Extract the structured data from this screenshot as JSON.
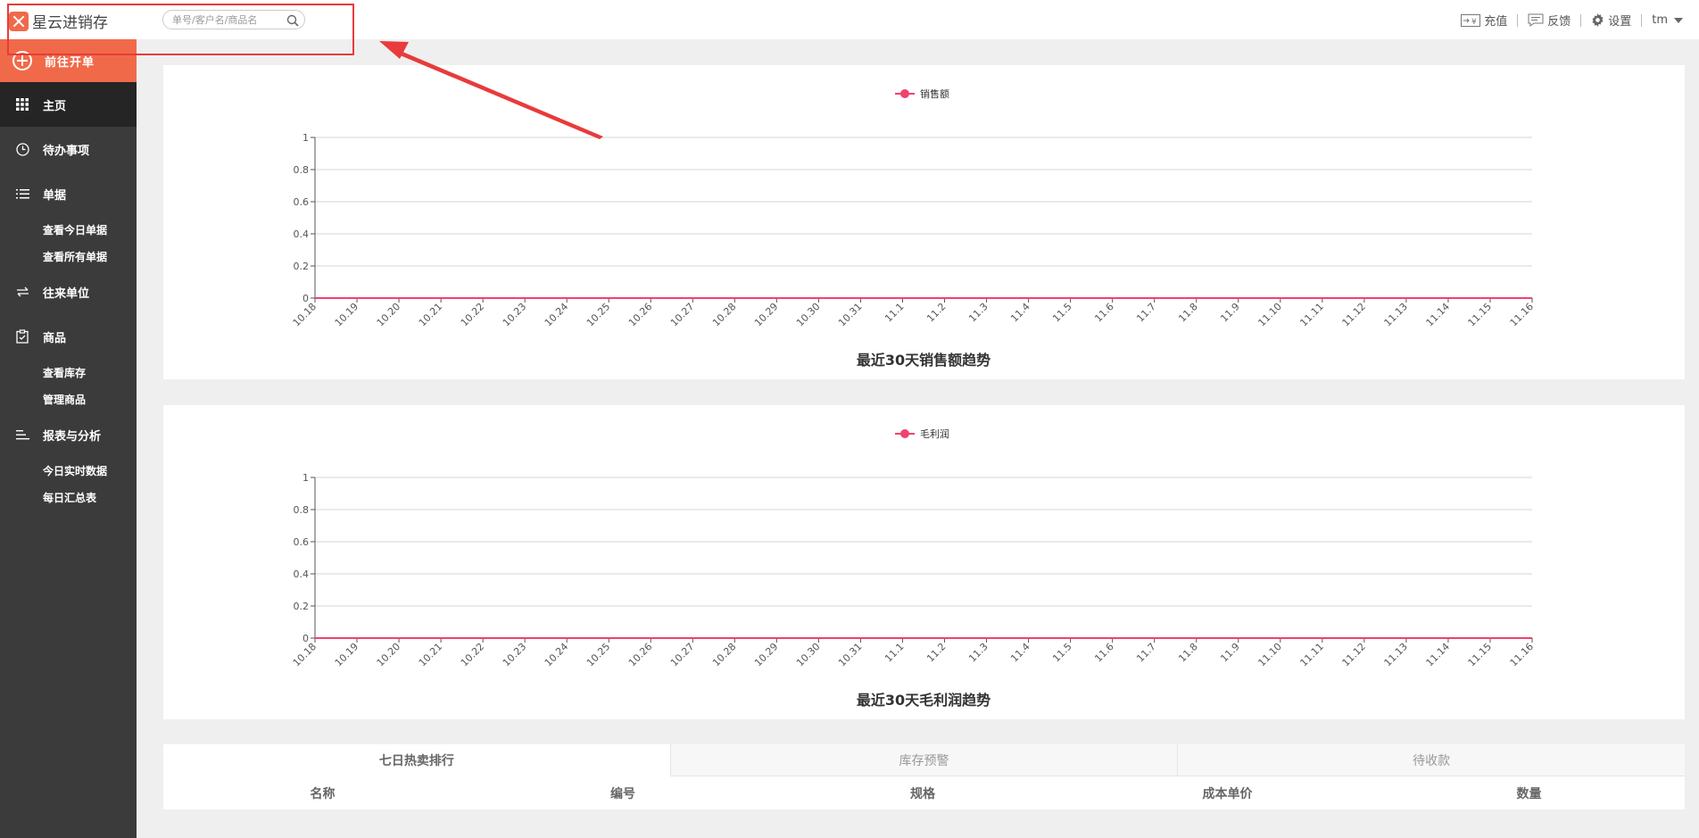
{
  "app": {
    "title": "星云进销存",
    "search_placeholder": "单号/客户名/商品名"
  },
  "topbar": {
    "recharge": "充值",
    "feedback": "反馈",
    "settings": "设置",
    "user": "tm"
  },
  "sidebar": {
    "new_order": "前往开单",
    "home": "主页",
    "todo": "待办事项",
    "documents": "单据",
    "documents_today": "查看今日单据",
    "documents_all": "查看所有单据",
    "partners": "往来单位",
    "goods": "商品",
    "goods_stock": "查看库存",
    "goods_manage": "管理商品",
    "reports": "报表与分析",
    "reports_realtime": "今日实时数据",
    "reports_daily": "每日汇总表"
  },
  "colors": {
    "accent": "#f06a4a",
    "series": "#f0426e",
    "sidebar": "#3b3b3b"
  },
  "chart_data": [
    {
      "type": "line",
      "title": "最近30天销售额趋势",
      "legend": "销售额",
      "categories": [
        "10.18",
        "10.19",
        "10.20",
        "10.21",
        "10.22",
        "10.23",
        "10.24",
        "10.25",
        "10.26",
        "10.27",
        "10.28",
        "10.29",
        "10.30",
        "10.31",
        "11.1",
        "11.2",
        "11.3",
        "11.4",
        "11.5",
        "11.6",
        "11.7",
        "11.8",
        "11.9",
        "11.10",
        "11.11",
        "11.12",
        "11.13",
        "11.14",
        "11.15",
        "11.16"
      ],
      "values": [
        0,
        0,
        0,
        0,
        0,
        0,
        0,
        0,
        0,
        0,
        0,
        0,
        0,
        0,
        0,
        0,
        0,
        0,
        0,
        0,
        0,
        0,
        0,
        0,
        0,
        0,
        0,
        0,
        0,
        0
      ],
      "yticks": [
        "0",
        "0.2",
        "0.4",
        "0.6",
        "0.8",
        "1"
      ],
      "ylim": [
        0,
        1
      ]
    },
    {
      "type": "line",
      "title": "最近30天毛利润趋势",
      "legend": "毛利润",
      "categories": [
        "10.18",
        "10.19",
        "10.20",
        "10.21",
        "10.22",
        "10.23",
        "10.24",
        "10.25",
        "10.26",
        "10.27",
        "10.28",
        "10.29",
        "10.30",
        "10.31",
        "11.1",
        "11.2",
        "11.3",
        "11.4",
        "11.5",
        "11.6",
        "11.7",
        "11.8",
        "11.9",
        "11.10",
        "11.11",
        "11.12",
        "11.13",
        "11.14",
        "11.15",
        "11.16"
      ],
      "values": [
        0,
        0,
        0,
        0,
        0,
        0,
        0,
        0,
        0,
        0,
        0,
        0,
        0,
        0,
        0,
        0,
        0,
        0,
        0,
        0,
        0,
        0,
        0,
        0,
        0,
        0,
        0,
        0,
        0,
        0
      ],
      "yticks": [
        "0",
        "0.2",
        "0.4",
        "0.6",
        "0.8",
        "1"
      ],
      "ylim": [
        0,
        1
      ]
    }
  ],
  "tabs": [
    "七日热卖排行",
    "库存预警",
    "待收款"
  ],
  "table_headers": [
    "名称",
    "编号",
    "规格",
    "成本单价",
    "数量"
  ]
}
